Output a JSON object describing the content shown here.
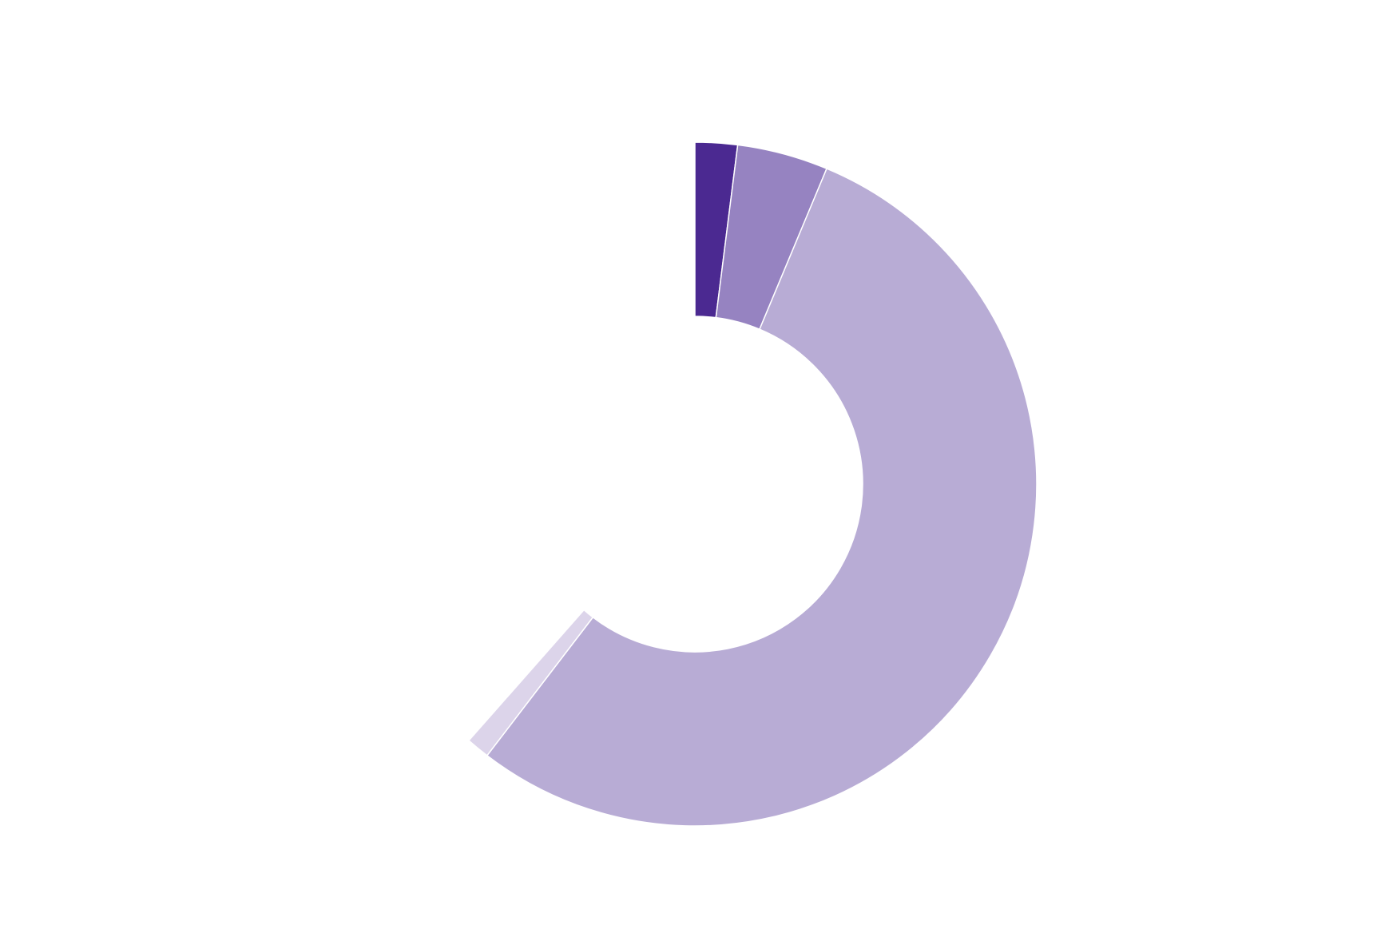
{
  "chart_data": {
    "type": "pie",
    "subtype": "donut",
    "start_angle_deg": 0,
    "direction": "clockwise",
    "slices": [
      {
        "value": 2,
        "color": "#4b2991"
      },
      {
        "value": 4.3,
        "color": "#9683c1"
      },
      {
        "value": 54.1,
        "color": "#b8acd5"
      },
      {
        "value": 1.1,
        "color": "#dcd4ea"
      }
    ],
    "legend": "none",
    "title": ""
  }
}
